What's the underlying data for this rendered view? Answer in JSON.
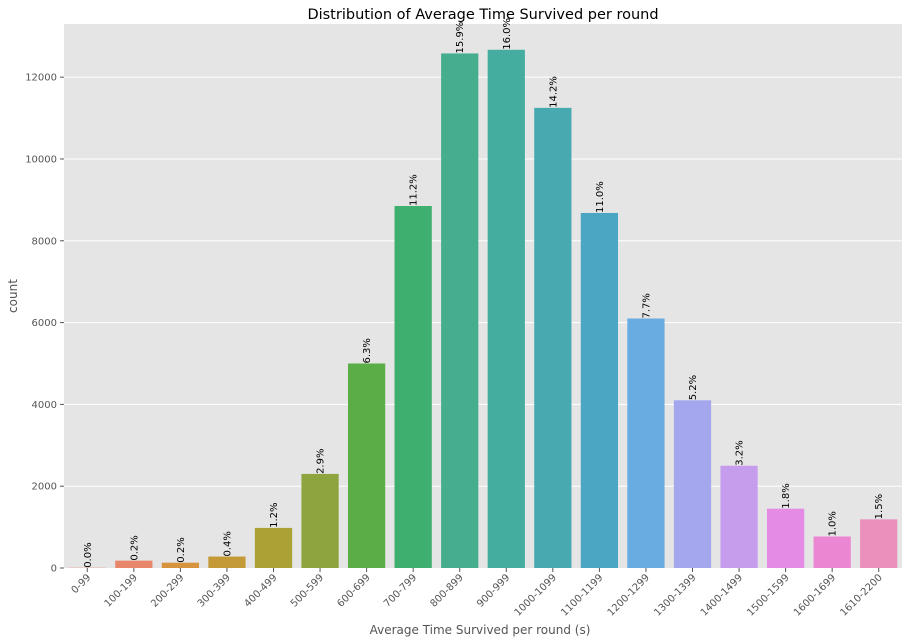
{
  "chart_data": {
    "type": "bar",
    "title": "Distribution of  Average Time Survived per round",
    "xlabel": "Average Time Survived per round (s)",
    "ylabel": "count",
    "ylim": [
      0,
      13300
    ],
    "yticks": [
      0,
      2000,
      4000,
      6000,
      8000,
      10000,
      12000
    ],
    "grid": true,
    "categories": [
      "0-99",
      "100-199",
      "200-299",
      "300-399",
      "400-499",
      "500-599",
      "600-699",
      "700-799",
      "800-899",
      "900-999",
      "1000-1099",
      "1100-1199",
      "1200-1299",
      "1300-1399",
      "1400-1499",
      "1500-1599",
      "1600-1699",
      "1610-2200"
    ],
    "values": [
      5,
      180,
      130,
      280,
      980,
      2300,
      5000,
      8850,
      12580,
      12670,
      11250,
      8680,
      6100,
      4100,
      2500,
      1450,
      770,
      1190
    ],
    "labels": [
      "0.0%",
      "0.2%",
      "0.2%",
      "0.4%",
      "1.2%",
      "2.9%",
      "6.3%",
      "11.2%",
      "15.9%",
      "16.0%",
      "14.2%",
      "11.0%",
      "7.7%",
      "5.2%",
      "3.2%",
      "1.8%",
      "1.0%",
      "1.5%"
    ],
    "colors": [
      "#f0776a",
      "#e8866a",
      "#d8933e",
      "#c49a38",
      "#aaa235",
      "#8ea53f",
      "#5bae47",
      "#3eaf6e",
      "#44ae8e",
      "#45ad9f",
      "#47aab0",
      "#4aa6c2",
      "#68ace1",
      "#a4a6ee",
      "#c69ded",
      "#e48be6",
      "#eb87d2",
      "#eb90bc"
    ]
  }
}
